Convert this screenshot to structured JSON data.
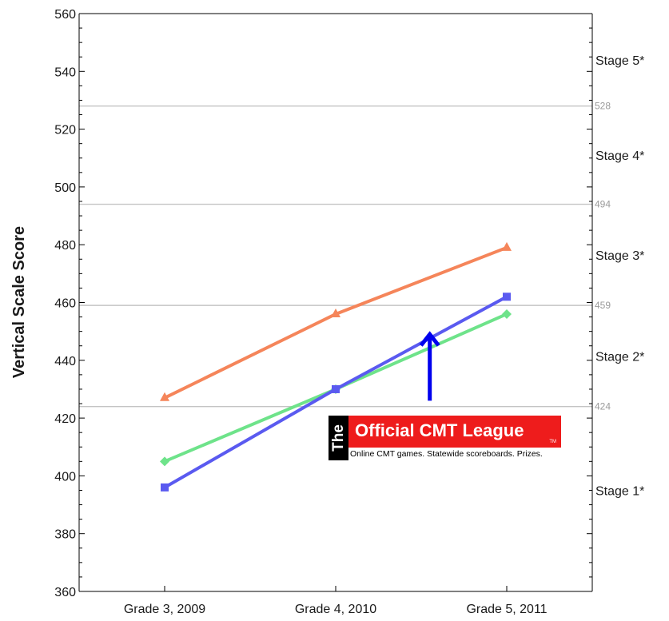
{
  "chart_data": {
    "type": "line",
    "ylabel": "Vertical Scale Score",
    "xlabel": "",
    "title": "",
    "ylim": [
      360,
      560
    ],
    "y_ticks": [
      360,
      380,
      400,
      420,
      440,
      460,
      480,
      500,
      520,
      540,
      560
    ],
    "categories": [
      "Grade 3, 2009",
      "Grade 4, 2010",
      "Grade 5, 2011"
    ],
    "series": [
      {
        "values": [
          427,
          456,
          479
        ],
        "color": "#f5855a",
        "marker": "triangle"
      },
      {
        "values": [
          405,
          430,
          456
        ],
        "color": "#6ee38a",
        "marker": "diamond"
      },
      {
        "values": [
          396,
          430,
          462
        ],
        "color": "#5a5af0",
        "marker": "square"
      }
    ],
    "reference_lines": [
      {
        "value": 424,
        "label": "424"
      },
      {
        "value": 459,
        "label": "459"
      },
      {
        "value": 494,
        "label": "494"
      },
      {
        "value": 528,
        "label": "528"
      }
    ],
    "stage_labels": [
      {
        "label": "Stage 1*",
        "value": 395
      },
      {
        "label": "Stage 2*",
        "value": 441.5
      },
      {
        "label": "Stage 3*",
        "value": 476.5
      },
      {
        "label": "Stage 4*",
        "value": 511
      },
      {
        "label": "Stage 5*",
        "value": 544
      }
    ],
    "grid": false,
    "legend": "none",
    "annotation_arrow": {
      "category_position": 1.55,
      "from_value": 426,
      "to_value": 449,
      "color": "#0000ee"
    }
  },
  "ad": {
    "the": "The",
    "title": "Official CMT League",
    "tm": "TM",
    "tagline": "Online CMT games. Statewide scoreboards. Prizes."
  }
}
